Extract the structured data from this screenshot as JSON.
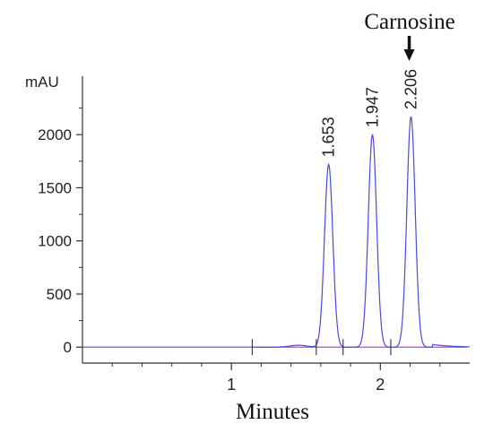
{
  "chart_data": {
    "type": "line",
    "title": "",
    "xlabel": "Minutes",
    "ylabel": "mAU",
    "xlim": [
      0,
      2.6
    ],
    "ylim": [
      -150,
      2550
    ],
    "x_ticks": [
      1,
      2
    ],
    "x_tick_labels": [
      "1",
      "2"
    ],
    "y_ticks": [
      0,
      500,
      1000,
      1500,
      2000
    ],
    "y_tick_labels": [
      "0",
      "500",
      "1000",
      "1500",
      "2000"
    ],
    "grid": false,
    "legend": "none",
    "series": [
      {
        "color": "#4a4adf",
        "peaks": [
          {
            "rt": 1.653,
            "height": 1720,
            "label": "1.653"
          },
          {
            "rt": 1.947,
            "height": 2000,
            "label": "1.947"
          },
          {
            "rt": 2.206,
            "height": 2170,
            "label": "2.206"
          }
        ]
      }
    ],
    "baseline_color": "#d63ad6",
    "integration_marks": [
      1.14,
      1.57,
      1.75,
      2.07
    ],
    "annotation": {
      "text": "Carnosine",
      "target_rt": 2.206
    }
  }
}
